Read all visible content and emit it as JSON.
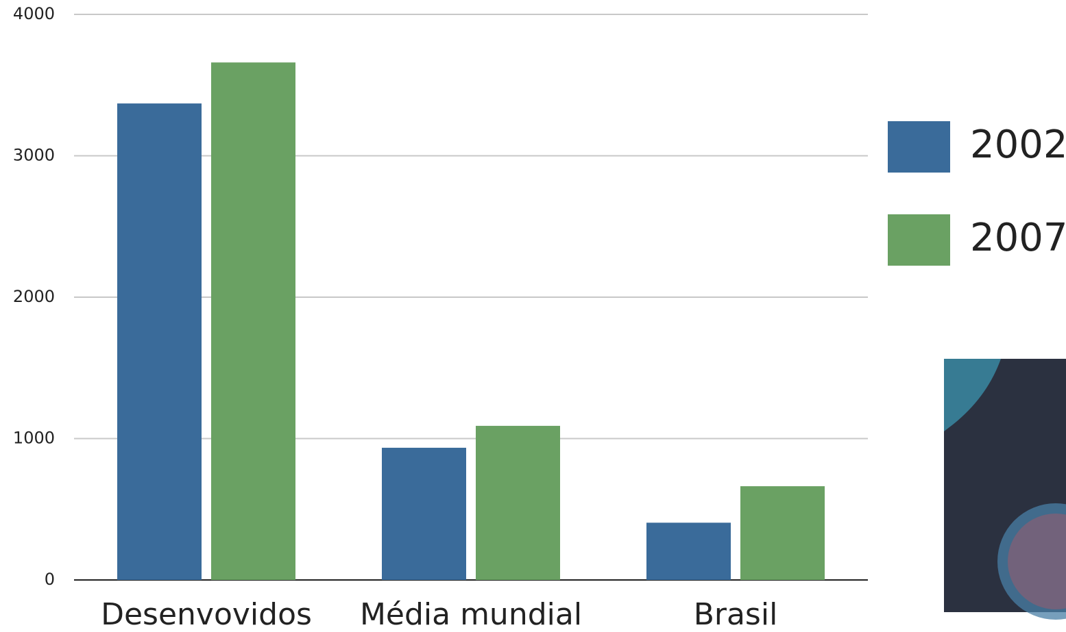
{
  "chart_data": {
    "type": "bar",
    "categories": [
      "Desenvovidos",
      "Média mundial",
      "Brasil"
    ],
    "series": [
      {
        "name": "2002",
        "color": "#3a6b9a",
        "values": [
          3370,
          935,
          405
        ]
      },
      {
        "name": "2007",
        "color": "#6aa163",
        "values": [
          3660,
          1090,
          663
        ]
      }
    ],
    "ylim": [
      0,
      4000
    ],
    "yticks": [
      0,
      1000,
      2000,
      3000,
      4000
    ],
    "grid": true,
    "legend": "right"
  }
}
